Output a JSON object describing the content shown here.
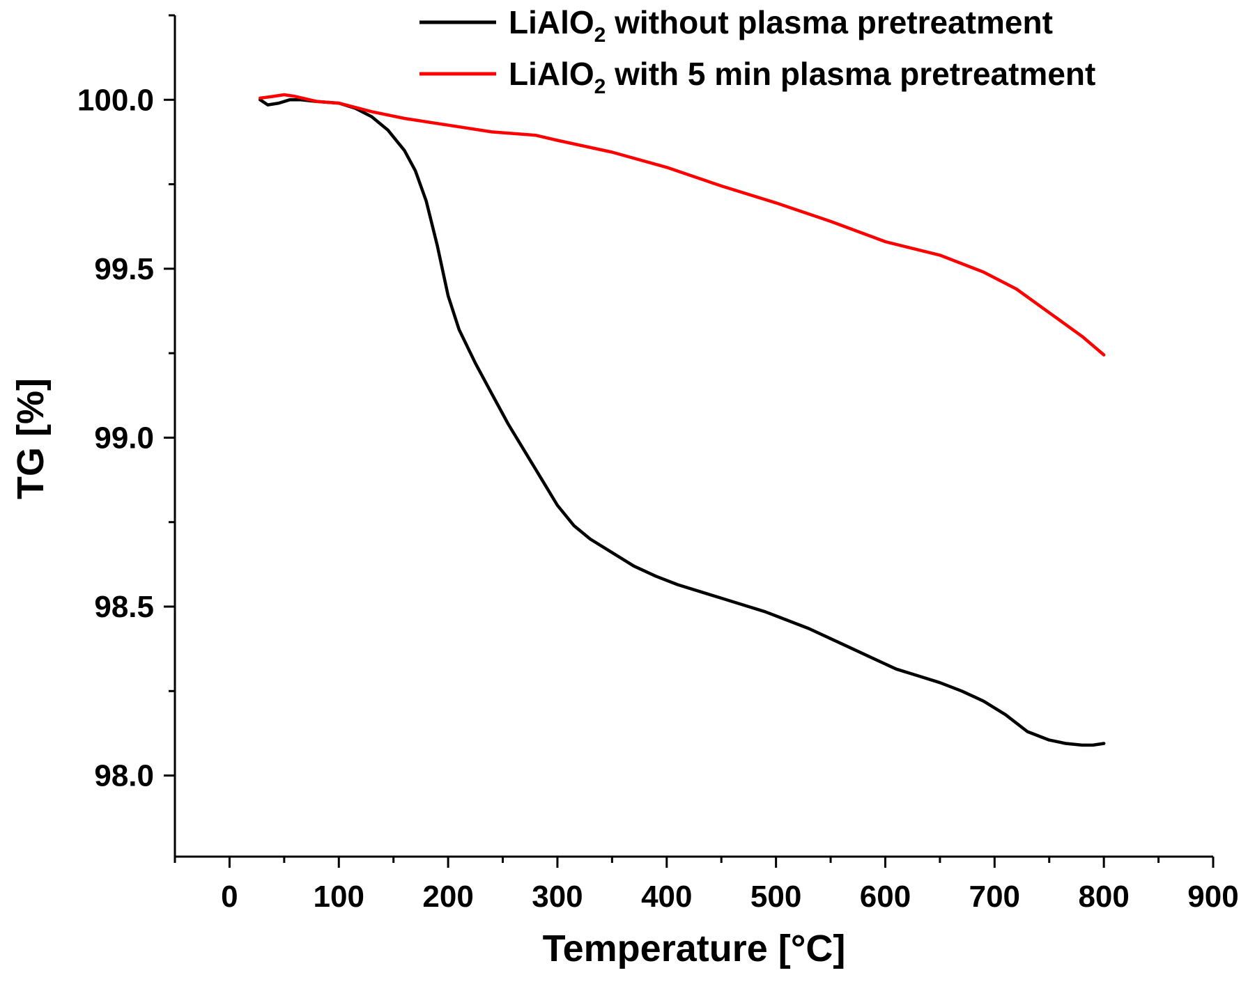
{
  "chart_data": {
    "type": "line",
    "title": "",
    "xlabel": "Temperature [°C]",
    "ylabel": "TG [%]",
    "xlim": [
      -50,
      900
    ],
    "ylim": [
      97.76,
      100.25
    ],
    "x_ticks": [
      0,
      100,
      200,
      300,
      400,
      500,
      600,
      700,
      800,
      900
    ],
    "x_tick_labels": [
      "0",
      "100",
      "200",
      "300",
      "400",
      "500",
      "600",
      "700",
      "800",
      "900"
    ],
    "x_minor_ticks": [
      -50,
      50,
      150,
      250,
      350,
      450,
      550,
      650,
      750,
      850
    ],
    "y_ticks": [
      98.0,
      98.5,
      99.0,
      99.5,
      100.0
    ],
    "y_tick_labels": [
      "98.0",
      "98.5",
      "99.0",
      "99.5",
      "100.0"
    ],
    "y_minor_ticks": [
      98.25,
      98.75,
      99.25,
      99.75,
      100.25
    ],
    "grid": false,
    "legend_position": "top-right",
    "series": [
      {
        "name": "LiAlO2 without plasma pretreatment",
        "legend_main": "LiAlO",
        "legend_sub": "2",
        "legend_rest": " without plasma pretreatment",
        "color": "#000000",
        "x": [
          28,
          35,
          45,
          55,
          65,
          80,
          100,
          115,
          130,
          145,
          160,
          170,
          180,
          190,
          200,
          210,
          225,
          240,
          255,
          270,
          285,
          300,
          315,
          330,
          350,
          370,
          390,
          410,
          430,
          450,
          470,
          490,
          510,
          530,
          550,
          570,
          590,
          610,
          630,
          650,
          670,
          690,
          710,
          730,
          750,
          765,
          780,
          790,
          800
        ],
        "y": [
          100.0,
          99.985,
          99.99,
          100.0,
          100.0,
          99.995,
          99.99,
          99.975,
          99.95,
          99.91,
          99.85,
          99.79,
          99.7,
          99.57,
          99.42,
          99.32,
          99.22,
          99.13,
          99.04,
          98.96,
          98.88,
          98.8,
          98.74,
          98.7,
          98.66,
          98.62,
          98.59,
          98.565,
          98.545,
          98.525,
          98.505,
          98.485,
          98.46,
          98.435,
          98.405,
          98.375,
          98.345,
          98.315,
          98.295,
          98.275,
          98.25,
          98.22,
          98.18,
          98.13,
          98.105,
          98.095,
          98.09,
          98.09,
          98.095
        ]
      },
      {
        "name": "LiAlO2 with 5 min plasma pretreatment",
        "legend_main": "LiAlO",
        "legend_sub": "2",
        "legend_rest": " with 5 min plasma pretreatment",
        "color": "#ff0000",
        "x": [
          28,
          40,
          50,
          60,
          80,
          100,
          130,
          160,
          200,
          240,
          280,
          300,
          350,
          400,
          450,
          500,
          550,
          600,
          650,
          690,
          720,
          750,
          780,
          800
        ],
        "y": [
          100.005,
          100.01,
          100.015,
          100.01,
          99.995,
          99.99,
          99.965,
          99.945,
          99.925,
          99.905,
          99.895,
          99.88,
          99.845,
          99.8,
          99.745,
          99.695,
          99.64,
          99.58,
          99.54,
          99.49,
          99.44,
          99.37,
          99.3,
          99.245
        ]
      }
    ]
  }
}
